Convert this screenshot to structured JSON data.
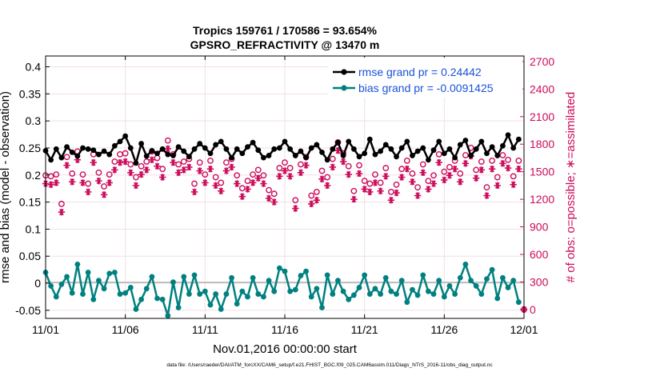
{
  "figure": {
    "title_line1": "Tropics 159761 / 170586 = 93.654%",
    "title_line2": "GPSRO_REFRACTIVITY @ 13470 m",
    "footer": "data file: /Users/raeder/DAI/ATM_forcXX/CAM6_setup/f.e21.FHIST_BGC.f09_025.CAM6assim.011/Diags_NTrS_2016-11/obs_diag_output.nc"
  },
  "colors": {
    "rmse": "#000000",
    "bias": "#008080",
    "counts": "#cc0a5a",
    "legend_text": "#1a52d9",
    "zero_line": "#b0b0b0"
  },
  "chart_data": {
    "type": "line",
    "title": "Tropics 159761 / 170586 = 93.654%",
    "subtitle": "GPSRO_REFRACTIVITY @ 13470 m",
    "xlabel": "Nov.01,2016 00:00:00 start",
    "ylabel": "rmse and bias (model - observation)",
    "y2label": "# of obs: o=possible; ∗=assimilated",
    "xlim": [
      0,
      30
    ],
    "ylim": [
      -0.065,
      0.42
    ],
    "y2lim": [
      -97,
      2760
    ],
    "xticks": [
      0,
      5,
      10,
      15,
      20,
      25,
      30
    ],
    "xtick_labels": [
      "11/01",
      "11/06",
      "11/11",
      "11/16",
      "11/21",
      "11/26",
      "12/01"
    ],
    "yticks": [
      -0.05,
      0,
      0.05,
      0.1,
      0.15,
      0.2,
      0.25,
      0.3,
      0.35,
      0.4
    ],
    "ytick_labels": [
      "-0.05",
      "0",
      "0.05",
      "0.1",
      "0.15",
      "0.2",
      "0.25",
      "0.3",
      "0.35",
      "0.4"
    ],
    "y2ticks": [
      0,
      300,
      600,
      900,
      1200,
      1500,
      1800,
      2100,
      2400,
      2700
    ],
    "y2tick_labels": [
      "0",
      "300",
      "600",
      "900",
      "1200",
      "1500",
      "1800",
      "2100",
      "2400",
      "2700"
    ],
    "legend_position": "top-right",
    "series": [
      {
        "name": "rmse grand pr = 0.24442",
        "axis": "left",
        "marker": "filled-circle",
        "x": [
          0.0,
          0.333,
          0.667,
          1.0,
          1.333,
          1.667,
          2.0,
          2.333,
          2.667,
          3.0,
          3.333,
          3.667,
          4.0,
          4.333,
          4.667,
          5.0,
          5.333,
          5.667,
          6.0,
          6.333,
          6.667,
          7.0,
          7.333,
          7.667,
          8.0,
          8.333,
          8.667,
          9.0,
          9.333,
          9.667,
          10.0,
          10.333,
          10.667,
          11.0,
          11.333,
          11.667,
          12.0,
          12.333,
          12.667,
          13.0,
          13.333,
          13.667,
          14.0,
          14.333,
          14.667,
          15.0,
          15.333,
          15.667,
          16.0,
          16.333,
          16.667,
          17.0,
          17.333,
          17.667,
          18.0,
          18.333,
          18.667,
          19.0,
          19.333,
          19.667,
          20.0,
          20.333,
          20.667,
          21.0,
          21.333,
          21.667,
          22.0,
          22.333,
          22.667,
          23.0,
          23.333,
          23.667,
          24.0,
          24.333,
          24.667,
          25.0,
          25.333,
          25.667,
          26.0,
          26.333,
          26.667,
          27.0,
          27.333,
          27.667,
          28.0,
          28.333,
          28.667,
          29.0,
          29.333,
          29.667
        ],
        "values": [
          0.245,
          0.228,
          0.248,
          0.232,
          0.252,
          0.242,
          0.235,
          0.25,
          0.248,
          0.246,
          0.238,
          0.244,
          0.238,
          0.254,
          0.262,
          0.272,
          0.25,
          0.222,
          0.258,
          0.235,
          0.245,
          0.24,
          0.248,
          0.238,
          0.236,
          0.252,
          0.244,
          0.234,
          0.248,
          0.258,
          0.25,
          0.24,
          0.256,
          0.262,
          0.248,
          0.232,
          0.248,
          0.24,
          0.252,
          0.26,
          0.246,
          0.232,
          0.236,
          0.248,
          0.25,
          0.262,
          0.248,
          0.236,
          0.244,
          0.232,
          0.25,
          0.256,
          0.242,
          0.228,
          0.248,
          0.26,
          0.236,
          0.262,
          0.248,
          0.234,
          0.24,
          0.266,
          0.238,
          0.244,
          0.256,
          0.248,
          0.234,
          0.25,
          0.262,
          0.236,
          0.244,
          0.25,
          0.228,
          0.246,
          0.262,
          0.24,
          0.248,
          0.232,
          0.256,
          0.264,
          0.236,
          0.248,
          0.262,
          0.24,
          0.252,
          0.236,
          0.254,
          0.274,
          0.25,
          0.266
        ]
      },
      {
        "name": "bias grand pr = -0.0091425",
        "axis": "left",
        "marker": "filled-circle",
        "x": [
          0.0,
          0.333,
          0.667,
          1.0,
          1.333,
          1.667,
          2.0,
          2.333,
          2.667,
          3.0,
          3.333,
          3.667,
          4.0,
          4.333,
          4.667,
          5.0,
          5.333,
          5.667,
          6.0,
          6.333,
          6.667,
          7.0,
          7.333,
          7.667,
          8.0,
          8.333,
          8.667,
          9.0,
          9.333,
          9.667,
          10.0,
          10.333,
          10.667,
          11.0,
          11.333,
          11.667,
          12.0,
          12.333,
          12.667,
          13.0,
          13.333,
          13.667,
          14.0,
          14.333,
          14.667,
          15.0,
          15.333,
          15.667,
          16.0,
          16.333,
          16.667,
          17.0,
          17.333,
          17.667,
          18.0,
          18.333,
          18.667,
          19.0,
          19.333,
          19.667,
          20.0,
          20.333,
          20.667,
          21.0,
          21.333,
          21.667,
          22.0,
          22.333,
          22.667,
          23.0,
          23.333,
          23.667,
          24.0,
          24.333,
          24.667,
          25.0,
          25.333,
          25.667,
          26.0,
          26.333,
          26.667,
          27.0,
          27.333,
          27.667,
          28.0,
          28.333,
          28.667,
          29.0,
          29.333,
          29.667
        ],
        "values": [
          0.02,
          -0.005,
          -0.025,
          -0.002,
          0.012,
          -0.018,
          0.035,
          -0.02,
          0.02,
          -0.03,
          0.005,
          -0.01,
          0.018,
          0.02,
          -0.02,
          -0.018,
          -0.008,
          -0.048,
          -0.03,
          -0.01,
          0.012,
          -0.028,
          -0.03,
          -0.06,
          0.002,
          -0.045,
          0.012,
          -0.02,
          0.015,
          -0.02,
          -0.015,
          -0.04,
          -0.02,
          -0.048,
          -0.02,
          0.01,
          -0.038,
          -0.015,
          -0.025,
          0.01,
          -0.02,
          -0.025,
          0.005,
          -0.015,
          0.028,
          0.022,
          -0.015,
          -0.012,
          0.014,
          0.022,
          -0.025,
          -0.01,
          -0.045,
          0.015,
          -0.02,
          0.005,
          -0.015,
          -0.03,
          -0.022,
          -0.008,
          0.015,
          -0.02,
          -0.01,
          -0.02,
          0.01,
          -0.015,
          -0.02,
          0.005,
          -0.035,
          -0.012,
          -0.022,
          0.015,
          -0.015,
          -0.02,
          0.005,
          -0.025,
          -0.005,
          -0.02,
          0.01,
          0.035,
          0.005,
          -0.005,
          -0.02,
          0.008,
          0.025,
          -0.028,
          0.01,
          -0.008,
          0.005,
          -0.035
        ]
      },
      {
        "name": "obs possible",
        "axis": "right",
        "marker": "open-circle",
        "x": [
          0.0,
          0.333,
          0.667,
          1.0,
          1.333,
          1.667,
          2.0,
          2.333,
          2.667,
          3.0,
          3.333,
          3.667,
          4.0,
          4.333,
          4.667,
          5.0,
          5.333,
          5.667,
          6.0,
          6.333,
          6.667,
          7.0,
          7.333,
          7.667,
          8.0,
          8.333,
          8.667,
          9.0,
          9.333,
          9.667,
          10.0,
          10.333,
          10.667,
          11.0,
          11.333,
          11.667,
          12.0,
          12.333,
          12.667,
          13.0,
          13.333,
          13.667,
          14.0,
          14.333,
          14.667,
          15.0,
          15.333,
          15.667,
          16.0,
          16.333,
          16.667,
          17.0,
          17.333,
          17.667,
          18.0,
          18.333,
          18.667,
          19.0,
          19.333,
          19.667,
          20.0,
          20.333,
          20.667,
          21.0,
          21.333,
          21.667,
          22.0,
          22.333,
          22.667,
          23.0,
          23.333,
          23.667,
          24.0,
          24.333,
          24.667,
          25.0,
          25.333,
          25.667,
          26.0,
          26.333,
          26.667,
          27.0,
          27.333,
          27.667,
          28.0,
          28.333,
          28.667,
          29.0,
          29.333,
          29.667
        ],
        "values": [
          1460,
          1450,
          1470,
          1150,
          1660,
          1480,
          1720,
          1470,
          1370,
          1690,
          1490,
          1340,
          1470,
          1610,
          1690,
          1700,
          1580,
          1440,
          1560,
          1610,
          1720,
          1650,
          1530,
          1840,
          1690,
          1580,
          1610,
          1640,
          1370,
          1600,
          1470,
          1620,
          1440,
          1380,
          1600,
          1640,
          1460,
          1320,
          1400,
          1470,
          1520,
          1460,
          1300,
          1260,
          1540,
          1600,
          1540,
          1190,
          1580,
          1660,
          1240,
          1280,
          1510,
          1440,
          1640,
          1820,
          1700,
          1560,
          1290,
          1570,
          1400,
          1370,
          1470,
          1380,
          1540,
          1280,
          1360,
          1530,
          1620,
          1480,
          1330,
          1580,
          1400,
          1460,
          1690,
          1500,
          1550,
          1620,
          1480,
          1680,
          1760,
          1520,
          1610,
          1330,
          1620,
          1440,
          1680,
          1630,
          1450,
          1620
        ]
      },
      {
        "name": "obs assimilated",
        "axis": "right",
        "marker": "asterisk",
        "x": [
          0.0,
          0.333,
          0.667,
          1.0,
          1.333,
          1.667,
          2.0,
          2.333,
          2.667,
          3.0,
          3.333,
          3.667,
          4.0,
          4.333,
          4.667,
          5.0,
          5.333,
          5.667,
          6.0,
          6.333,
          6.667,
          7.0,
          7.333,
          7.667,
          8.0,
          8.333,
          8.667,
          9.0,
          9.333,
          9.667,
          10.0,
          10.333,
          10.667,
          11.0,
          11.333,
          11.667,
          12.0,
          12.333,
          12.667,
          13.0,
          13.333,
          13.667,
          14.0,
          14.333,
          14.667,
          15.0,
          15.333,
          15.667,
          16.0,
          16.333,
          16.667,
          17.0,
          17.333,
          17.667,
          18.0,
          18.333,
          18.667,
          19.0,
          19.333,
          19.667,
          20.0,
          20.333,
          20.667,
          21.0,
          21.333,
          21.667,
          22.0,
          22.333,
          22.667,
          23.0,
          23.333,
          23.667,
          24.0,
          24.333,
          24.667,
          25.0,
          25.333,
          25.667,
          26.0,
          26.333,
          26.667,
          27.0,
          27.333,
          27.667,
          28.0,
          28.333,
          28.667,
          29.0,
          29.333,
          29.667
        ],
        "values": [
          1370,
          1360,
          1380,
          1060,
          1570,
          1390,
          1630,
          1380,
          1280,
          1600,
          1400,
          1250,
          1380,
          1520,
          1600,
          1610,
          1490,
          1350,
          1470,
          1520,
          1630,
          1560,
          1440,
          1750,
          1600,
          1490,
          1520,
          1550,
          1280,
          1510,
          1380,
          1530,
          1350,
          1290,
          1510,
          1550,
          1370,
          1230,
          1310,
          1380,
          1430,
          1370,
          1210,
          1170,
          1450,
          1510,
          1450,
          1100,
          1490,
          1570,
          1150,
          1190,
          1420,
          1350,
          1550,
          1730,
          1610,
          1470,
          1200,
          1480,
          1310,
          1280,
          1380,
          1290,
          1450,
          1190,
          1270,
          1440,
          1530,
          1390,
          1240,
          1490,
          1310,
          1370,
          1600,
          1410,
          1460,
          1530,
          1390,
          1590,
          1670,
          1430,
          1520,
          1240,
          1530,
          1350,
          1590,
          1540,
          1360,
          1530
        ]
      }
    ],
    "end_markers": [
      {
        "x": 30,
        "value": 0,
        "axis": "right",
        "marker": "open-circle"
      },
      {
        "x": 30,
        "value": 0,
        "axis": "right",
        "marker": "asterisk"
      }
    ]
  }
}
